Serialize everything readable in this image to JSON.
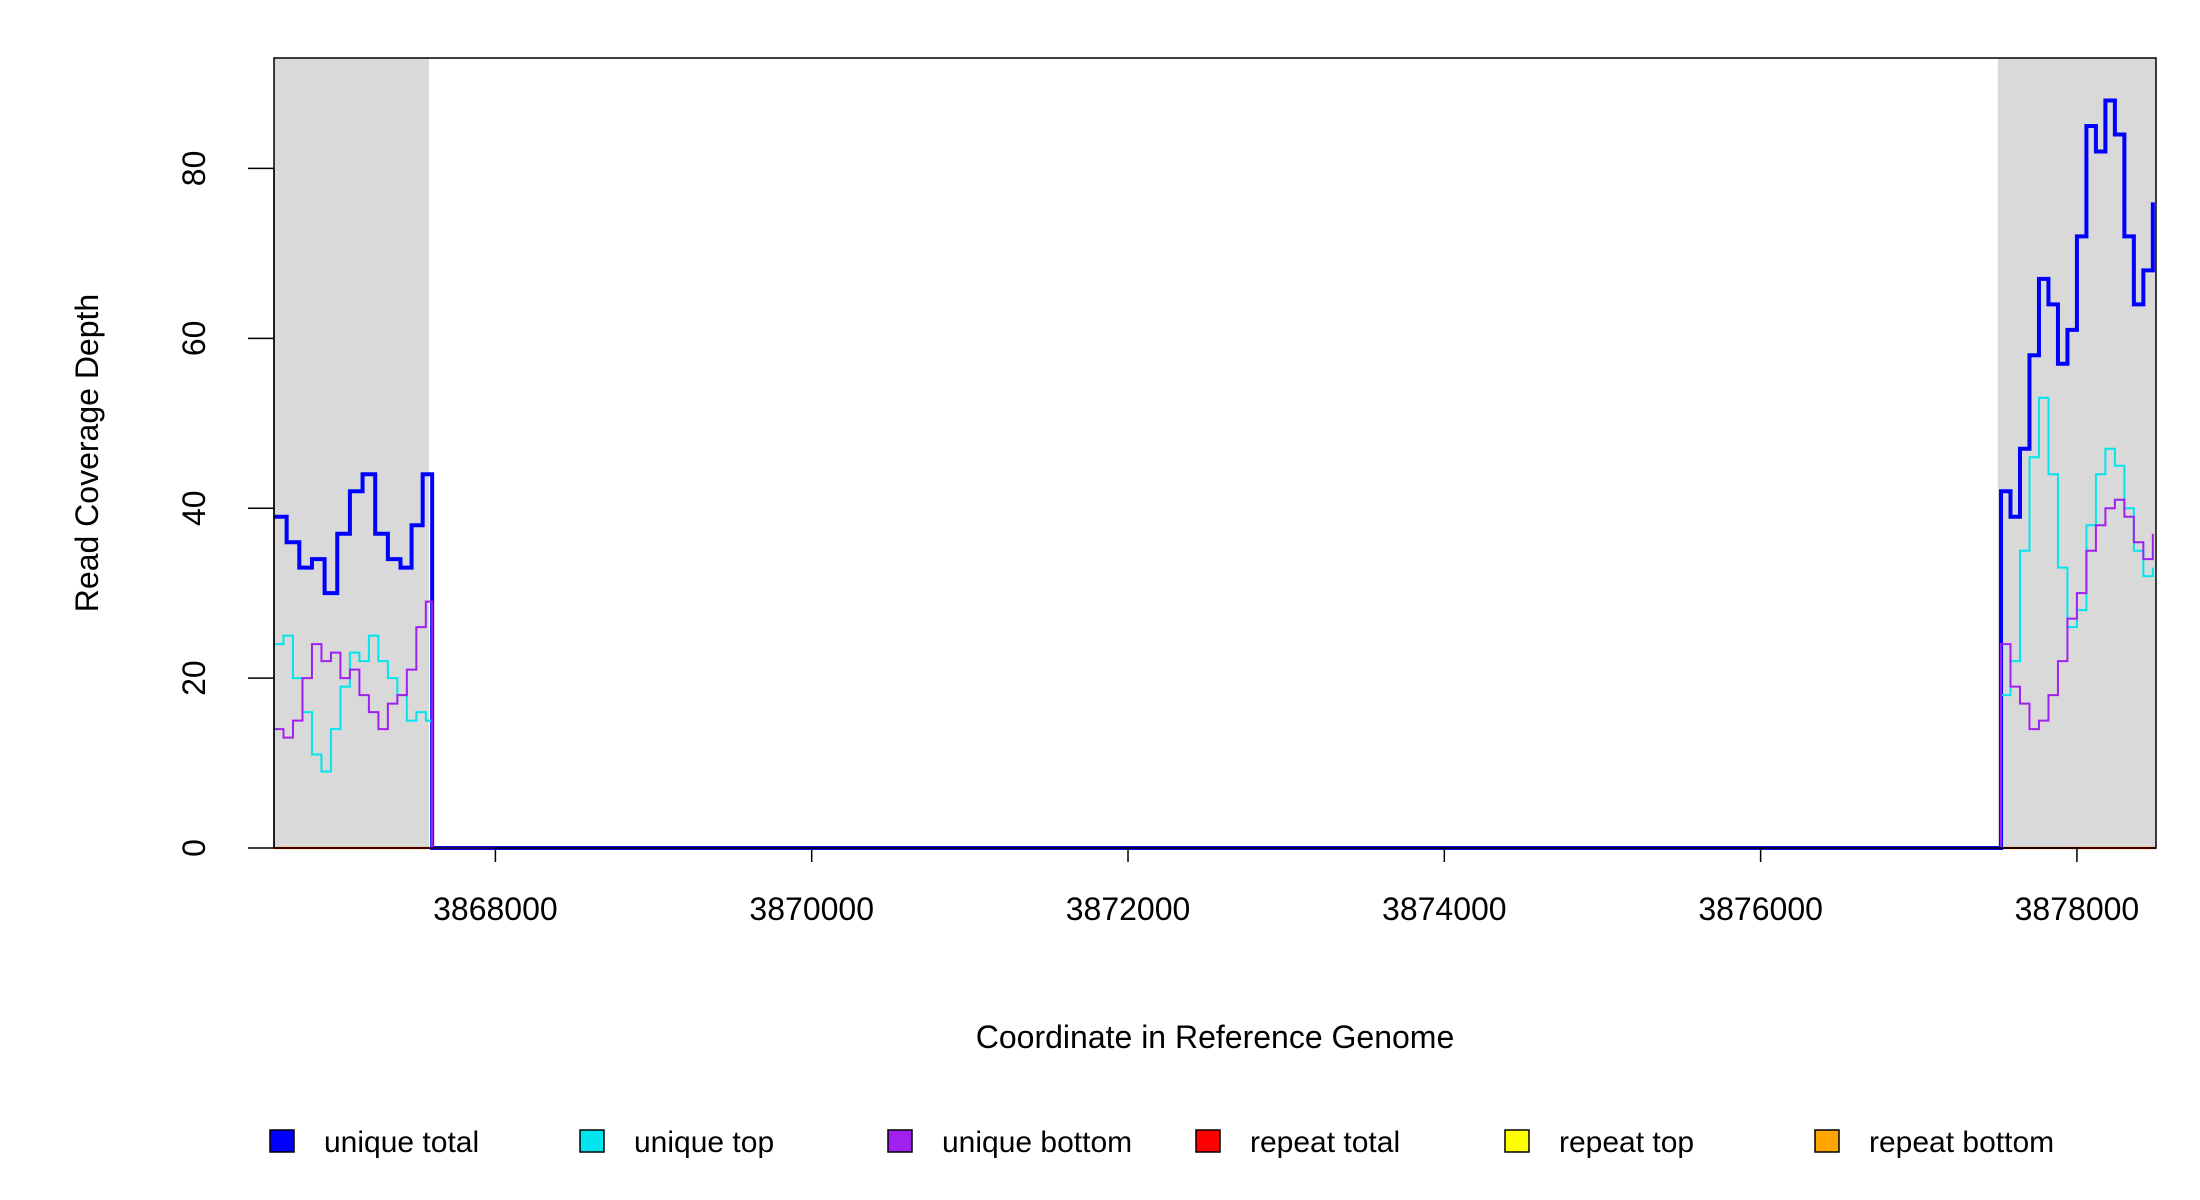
{
  "chart_data": {
    "type": "line",
    "xlabel": "Coordinate in Reference Genome",
    "ylabel": "Read Coverage Depth",
    "xlim": [
      3866600,
      3878500
    ],
    "ylim": [
      0,
      93
    ],
    "x_ticks": [
      3868000,
      3870000,
      3872000,
      3874000,
      3876000,
      3878000
    ],
    "x_tick_labels": [
      "3868000",
      "3870000",
      "3872000",
      "3874000",
      "3876000",
      "3878000"
    ],
    "y_ticks": [
      0,
      20,
      40,
      60,
      80
    ],
    "y_tick_labels": [
      "0",
      "20",
      "40",
      "60",
      "80"
    ],
    "shaded_regions": [
      [
        3866600,
        3867580
      ],
      [
        3877500,
        3878500
      ]
    ],
    "grid": false,
    "legend_position": "bottom",
    "series": [
      {
        "name": "unique total",
        "color": "#0000ff",
        "x": [
          3866600,
          3866680,
          3866760,
          3866840,
          3866920,
          3867000,
          3867080,
          3867160,
          3867240,
          3867320,
          3867400,
          3867470,
          3867540,
          3867590,
          3867600,
          3877500,
          3877520,
          3877580,
          3877640,
          3877700,
          3877760,
          3877820,
          3877880,
          3877940,
          3878000,
          3878060,
          3878120,
          3878180,
          3878240,
          3878300,
          3878360,
          3878420,
          3878480
        ],
        "y": [
          39,
          36,
          33,
          34,
          30,
          37,
          42,
          44,
          37,
          34,
          33,
          38,
          44,
          44,
          0,
          0,
          42,
          39,
          47,
          58,
          67,
          64,
          57,
          61,
          72,
          85,
          82,
          88,
          84,
          72,
          64,
          68,
          76
        ]
      },
      {
        "name": "unique top",
        "color": "#00e5ee",
        "x": [
          3866600,
          3866660,
          3866720,
          3866780,
          3866840,
          3866900,
          3866960,
          3867020,
          3867080,
          3867140,
          3867200,
          3867260,
          3867320,
          3867380,
          3867440,
          3867500,
          3867560,
          3867590,
          3867600,
          3877500,
          3877520,
          3877580,
          3877640,
          3877700,
          3877760,
          3877820,
          3877880,
          3877940,
          3878000,
          3878060,
          3878120,
          3878180,
          3878240,
          3878300,
          3878360,
          3878420,
          3878480
        ],
        "y": [
          24,
          25,
          20,
          16,
          11,
          9,
          14,
          19,
          23,
          22,
          25,
          22,
          20,
          18,
          15,
          16,
          15,
          15,
          0,
          0,
          18,
          22,
          35,
          46,
          53,
          44,
          33,
          26,
          28,
          38,
          44,
          47,
          45,
          40,
          35,
          32,
          33
        ]
      },
      {
        "name": "unique bottom",
        "color": "#a020f0",
        "x": [
          3866600,
          3866660,
          3866720,
          3866780,
          3866840,
          3866900,
          3866960,
          3867020,
          3867080,
          3867140,
          3867200,
          3867260,
          3867320,
          3867380,
          3867440,
          3867500,
          3867560,
          3867590,
          3867600,
          3877500,
          3877520,
          3877580,
          3877640,
          3877700,
          3877760,
          3877820,
          3877880,
          3877940,
          3878000,
          3878060,
          3878120,
          3878180,
          3878240,
          3878300,
          3878360,
          3878420,
          3878480
        ],
        "y": [
          14,
          13,
          15,
          20,
          24,
          22,
          23,
          20,
          21,
          18,
          16,
          14,
          17,
          18,
          21,
          26,
          29,
          29,
          0,
          0,
          24,
          19,
          17,
          14,
          15,
          18,
          22,
          27,
          30,
          35,
          38,
          40,
          41,
          39,
          36,
          34,
          37
        ]
      },
      {
        "name": "repeat total",
        "color": "#ff0000",
        "x": [
          3866600,
          3878500
        ],
        "y": [
          0,
          0
        ]
      },
      {
        "name": "repeat top",
        "color": "#ffff00",
        "x": [
          3866600,
          3878500
        ],
        "y": [
          0,
          0
        ]
      },
      {
        "name": "repeat bottom",
        "color": "#ffa500",
        "x": [
          3866600,
          3878500
        ],
        "y": [
          0,
          0
        ]
      }
    ]
  }
}
